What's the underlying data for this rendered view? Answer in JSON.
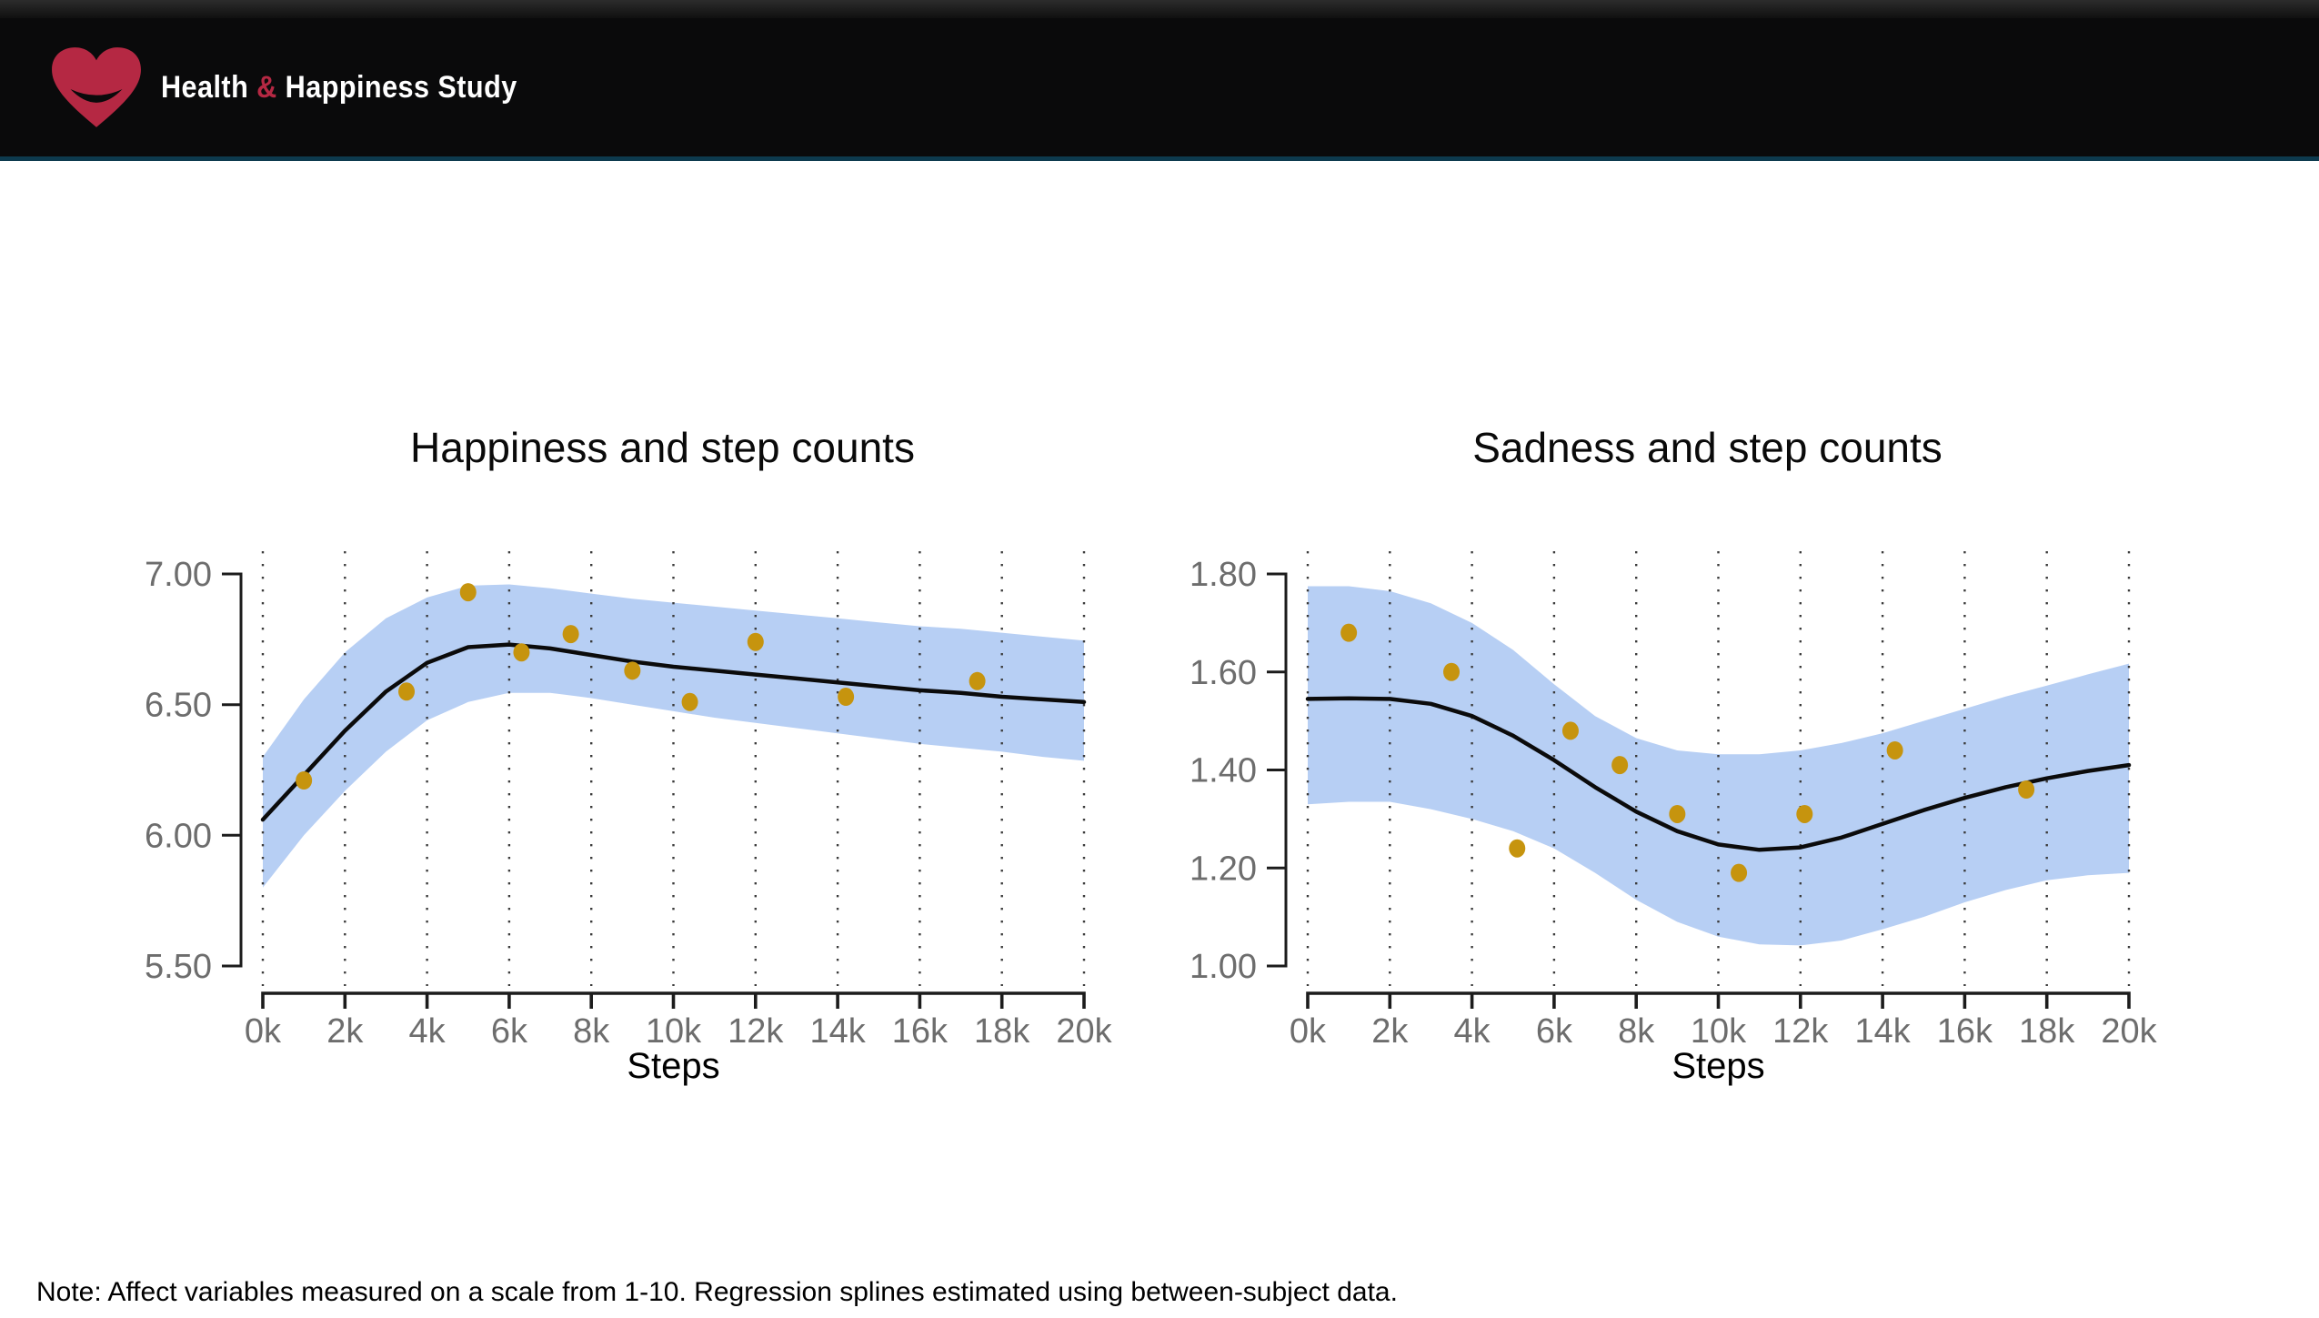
{
  "header": {
    "logo_icon": "smiling-heart-icon",
    "brand": {
      "part1": "Health ",
      "amp": "&",
      "part2": " Happiness Study"
    }
  },
  "note": {
    "text": "Note: Affect variables measured on a scale from 1-10. Regression splines estimated using between-subject data."
  },
  "theme": {
    "header_bg": "#0a0a0b",
    "top_strip_top": "#2c2c2c",
    "header_rule": "#0d3a4e",
    "heart_red": "#b52843",
    "band_blue": "#b7cff4",
    "dot_gold": "#c6940e",
    "spline_black": "#0b0b0b",
    "axis_dark": "#1c1c1c",
    "grid_dot": "#3b3b3b",
    "tick_label_gray": "#6d6d6d"
  },
  "chart_data": [
    {
      "type": "scatter",
      "subtype": "scatter + regression spline + confidence band",
      "title": "Happiness and step counts",
      "xlabel": "Steps",
      "ylabel": "",
      "xlim": [
        0,
        20000
      ],
      "ylim": [
        5.5,
        7.0
      ],
      "grid": "vertical-dotted",
      "legend": "none",
      "xtick_labels": [
        "0k",
        "2k",
        "4k",
        "6k",
        "8k",
        "10k",
        "12k",
        "14k",
        "16k",
        "18k",
        "20k"
      ],
      "xtick_values": [
        0,
        2000,
        4000,
        6000,
        8000,
        10000,
        12000,
        14000,
        16000,
        18000,
        20000
      ],
      "ytick_labels": [
        "7.00",
        "6.50",
        "6.00",
        "5.50"
      ],
      "ytick_values": [
        7.0,
        6.5,
        6.0,
        5.5
      ],
      "points": [
        [
          1000,
          6.21
        ],
        [
          3500,
          6.55
        ],
        [
          5000,
          6.93
        ],
        [
          6300,
          6.7
        ],
        [
          7500,
          6.77
        ],
        [
          9000,
          6.63
        ],
        [
          10400,
          6.51
        ],
        [
          12000,
          6.74
        ],
        [
          14200,
          6.53
        ],
        [
          17400,
          6.59
        ]
      ],
      "spline": [
        [
          0,
          6.06
        ],
        [
          1000,
          6.23
        ],
        [
          2000,
          6.4
        ],
        [
          3000,
          6.55
        ],
        [
          4000,
          6.66
        ],
        [
          5000,
          6.72
        ],
        [
          6000,
          6.73
        ],
        [
          7000,
          6.715
        ],
        [
          8000,
          6.69
        ],
        [
          9000,
          6.665
        ],
        [
          10000,
          6.645
        ],
        [
          11000,
          6.63
        ],
        [
          12000,
          6.615
        ],
        [
          13000,
          6.6
        ],
        [
          14000,
          6.585
        ],
        [
          15000,
          6.57
        ],
        [
          16000,
          6.555
        ],
        [
          17000,
          6.545
        ],
        [
          18000,
          6.53
        ],
        [
          19000,
          6.52
        ],
        [
          20000,
          6.51
        ]
      ],
      "band_top": [
        [
          0,
          6.3
        ],
        [
          1000,
          6.52
        ],
        [
          2000,
          6.7
        ],
        [
          3000,
          6.83
        ],
        [
          4000,
          6.91
        ],
        [
          5000,
          6.955
        ],
        [
          6000,
          6.96
        ],
        [
          7000,
          6.945
        ],
        [
          8000,
          6.925
        ],
        [
          9000,
          6.905
        ],
        [
          10000,
          6.89
        ],
        [
          11000,
          6.875
        ],
        [
          12000,
          6.86
        ],
        [
          13000,
          6.845
        ],
        [
          14000,
          6.83
        ],
        [
          15000,
          6.815
        ],
        [
          16000,
          6.8
        ],
        [
          17000,
          6.79
        ],
        [
          18000,
          6.775
        ],
        [
          19000,
          6.76
        ],
        [
          20000,
          6.745
        ]
      ],
      "band_bottom": [
        [
          0,
          5.8
        ],
        [
          1000,
          6.0
        ],
        [
          2000,
          6.17
        ],
        [
          3000,
          6.32
        ],
        [
          4000,
          6.44
        ],
        [
          5000,
          6.51
        ],
        [
          6000,
          6.545
        ],
        [
          7000,
          6.545
        ],
        [
          8000,
          6.525
        ],
        [
          9000,
          6.5
        ],
        [
          10000,
          6.475
        ],
        [
          11000,
          6.45
        ],
        [
          12000,
          6.43
        ],
        [
          13000,
          6.41
        ],
        [
          14000,
          6.39
        ],
        [
          15000,
          6.37
        ],
        [
          16000,
          6.35
        ],
        [
          17000,
          6.335
        ],
        [
          18000,
          6.32
        ],
        [
          19000,
          6.3
        ],
        [
          20000,
          6.285
        ]
      ]
    },
    {
      "type": "scatter",
      "subtype": "scatter + regression spline + confidence band",
      "title": "Sadness and step counts",
      "xlabel": "Steps",
      "ylabel": "",
      "xlim": [
        0,
        20000
      ],
      "ylim": [
        1.0,
        1.8
      ],
      "grid": "vertical-dotted",
      "legend": "none",
      "xtick_labels": [
        "0k",
        "2k",
        "4k",
        "6k",
        "8k",
        "10k",
        "12k",
        "14k",
        "16k",
        "18k",
        "20k"
      ],
      "xtick_values": [
        0,
        2000,
        4000,
        6000,
        8000,
        10000,
        12000,
        14000,
        16000,
        18000,
        20000
      ],
      "ytick_labels": [
        "1.80",
        "1.60",
        "1.40",
        "1.20",
        "1.00"
      ],
      "ytick_values": [
        1.8,
        1.6,
        1.4,
        1.2,
        1.0
      ],
      "points": [
        [
          1000,
          1.68
        ],
        [
          3500,
          1.6
        ],
        [
          5100,
          1.24
        ],
        [
          6400,
          1.48
        ],
        [
          7600,
          1.41
        ],
        [
          9000,
          1.31
        ],
        [
          10500,
          1.19
        ],
        [
          12100,
          1.31
        ],
        [
          14300,
          1.44
        ],
        [
          17500,
          1.36
        ]
      ],
      "spline": [
        [
          0,
          1.545
        ],
        [
          1000,
          1.546
        ],
        [
          2000,
          1.545
        ],
        [
          3000,
          1.535
        ],
        [
          4000,
          1.51
        ],
        [
          5000,
          1.47
        ],
        [
          6000,
          1.42
        ],
        [
          7000,
          1.365
        ],
        [
          8000,
          1.315
        ],
        [
          9000,
          1.275
        ],
        [
          10000,
          1.248
        ],
        [
          11000,
          1.237
        ],
        [
          12000,
          1.242
        ],
        [
          13000,
          1.262
        ],
        [
          14000,
          1.29
        ],
        [
          15000,
          1.318
        ],
        [
          16000,
          1.343
        ],
        [
          17000,
          1.365
        ],
        [
          18000,
          1.383
        ],
        [
          19000,
          1.398
        ],
        [
          20000,
          1.41
        ]
      ],
      "band_top": [
        [
          0,
          1.775
        ],
        [
          1000,
          1.775
        ],
        [
          2000,
          1.765
        ],
        [
          3000,
          1.74
        ],
        [
          4000,
          1.7
        ],
        [
          5000,
          1.645
        ],
        [
          6000,
          1.575
        ],
        [
          7000,
          1.51
        ],
        [
          8000,
          1.465
        ],
        [
          9000,
          1.44
        ],
        [
          10000,
          1.432
        ],
        [
          11000,
          1.432
        ],
        [
          12000,
          1.44
        ],
        [
          13000,
          1.455
        ],
        [
          14000,
          1.475
        ],
        [
          15000,
          1.5
        ],
        [
          16000,
          1.525
        ],
        [
          17000,
          1.55
        ],
        [
          18000,
          1.572
        ],
        [
          19000,
          1.595
        ],
        [
          20000,
          1.617
        ]
      ],
      "band_bottom": [
        [
          0,
          1.33
        ],
        [
          1000,
          1.335
        ],
        [
          2000,
          1.335
        ],
        [
          3000,
          1.32
        ],
        [
          4000,
          1.3
        ],
        [
          5000,
          1.275
        ],
        [
          6000,
          1.24
        ],
        [
          7000,
          1.19
        ],
        [
          8000,
          1.135
        ],
        [
          9000,
          1.09
        ],
        [
          10000,
          1.06
        ],
        [
          11000,
          1.044
        ],
        [
          12000,
          1.042
        ],
        [
          13000,
          1.052
        ],
        [
          14000,
          1.075
        ],
        [
          15000,
          1.1
        ],
        [
          16000,
          1.13
        ],
        [
          17000,
          1.155
        ],
        [
          18000,
          1.175
        ],
        [
          19000,
          1.185
        ],
        [
          20000,
          1.19
        ]
      ]
    }
  ]
}
